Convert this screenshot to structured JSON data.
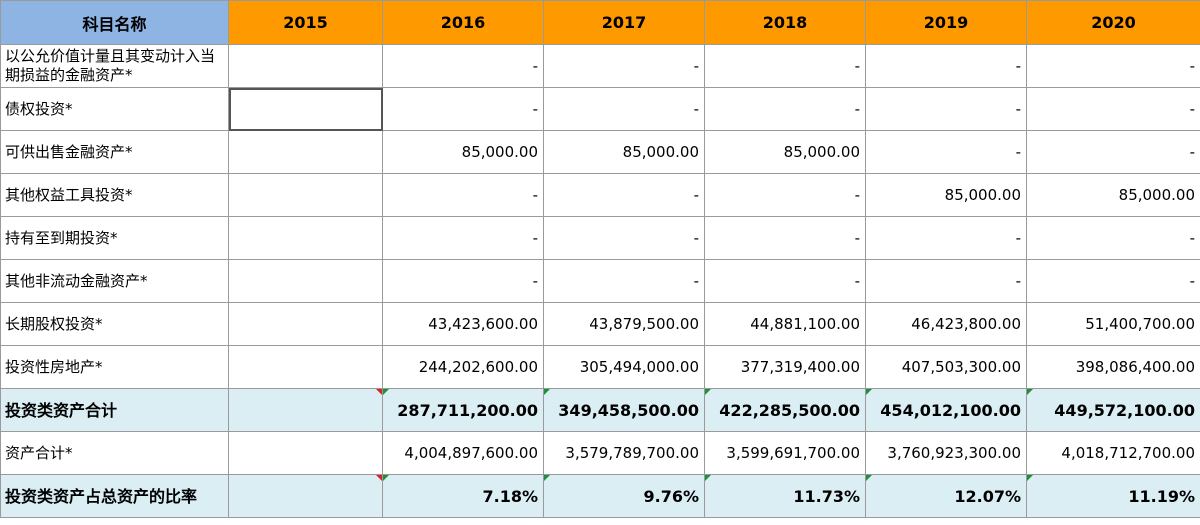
{
  "header": {
    "name_label": "科目名称",
    "years": [
      "2015",
      "2016",
      "2017",
      "2018",
      "2019",
      "2020"
    ]
  },
  "rows": [
    {
      "label": "以公允价值计量且其变动计入当期损益的金融资产*",
      "values": [
        "",
        "-",
        "-",
        "-",
        "-",
        "-"
      ]
    },
    {
      "label": "债权投资*",
      "values": [
        "",
        "-",
        "-",
        "-",
        "-",
        "-"
      ]
    },
    {
      "label": "可供出售金融资产*",
      "values": [
        "",
        "85,000.00",
        "85,000.00",
        "85,000.00",
        "-",
        "-"
      ]
    },
    {
      "label": "其他权益工具投资*",
      "values": [
        "",
        "-",
        "-",
        "-",
        "85,000.00",
        "85,000.00"
      ]
    },
    {
      "label": "持有至到期投资*",
      "values": [
        "",
        "-",
        "-",
        "-",
        "-",
        "-"
      ]
    },
    {
      "label": "其他非流动金融资产*",
      "values": [
        "",
        "-",
        "-",
        "-",
        "-",
        "-"
      ]
    },
    {
      "label": "长期股权投资*",
      "values": [
        "",
        "43,423,600.00",
        "43,879,500.00",
        "44,881,100.00",
        "46,423,800.00",
        "51,400,700.00"
      ]
    },
    {
      "label": "投资性房地产*",
      "values": [
        "",
        "244,202,600.00",
        "305,494,000.00",
        "377,319,400.00",
        "407,503,300.00",
        "398,086,400.00"
      ]
    },
    {
      "label": "投资类资产合计",
      "values": [
        "",
        "287,711,200.00",
        "349,458,500.00",
        "422,285,500.00",
        "454,012,100.00",
        "449,572,100.00"
      ]
    },
    {
      "label": "资产合计*",
      "values": [
        "",
        "4,004,897,600.00",
        "3,579,789,700.00",
        "3,599,691,700.00",
        "3,760,923,300.00",
        "4,018,712,700.00"
      ]
    },
    {
      "label": "投资类资产占总资产的比率",
      "values": [
        "",
        "7.18%",
        "9.76%",
        "11.73%",
        "12.07%",
        "11.19%"
      ]
    }
  ],
  "colors": {
    "header_name_bg": "#8db4e2",
    "header_year_bg": "#ff9900",
    "total_row_bg": "#daeef3"
  }
}
